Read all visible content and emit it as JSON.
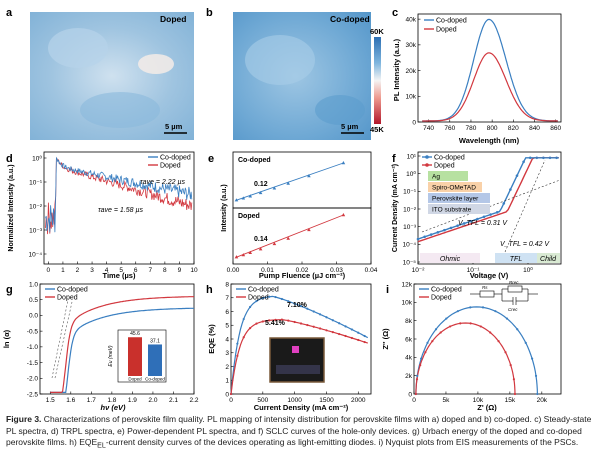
{
  "colors": {
    "codoped": "#3a7fc1",
    "doped": "#d2383f",
    "bar_codoped": "#2f6fb8",
    "bar_doped": "#c9302c"
  },
  "panel_a": {
    "letter": "a",
    "label": "Doped",
    "scale": "5 µm"
  },
  "panel_b": {
    "letter": "b",
    "label": "Co-doped",
    "scale": "5 µm",
    "colorbar_max": "60K",
    "colorbar_min": "45K"
  },
  "panel_c": {
    "letter": "c",
    "chart_data": {
      "type": "line",
      "xlabel": "Wavelength (nm)",
      "ylabel": "PL Intensity (a.u.)",
      "xlim": [
        730,
        865
      ],
      "ylim": [
        0,
        42000
      ],
      "xticks": [
        "740",
        "760",
        "780",
        "800",
        "820",
        "840",
        "860"
      ],
      "yticks": [
        "0",
        "10k",
        "20k",
        "30k",
        "40k"
      ],
      "series": [
        {
          "name": "Co-doped",
          "peak_x": 797,
          "peak_y": 39500,
          "width": 24
        },
        {
          "name": "Doped",
          "peak_x": 797,
          "peak_y": 26500,
          "width": 24
        }
      ]
    }
  },
  "panel_d": {
    "letter": "d",
    "chart_data": {
      "type": "line",
      "xlabel": "Time (µs)",
      "ylabel": "Normalized Intensity (a.u.)",
      "xlim": [
        -0.3,
        10
      ],
      "ylim_log": [
        -4,
        0.3
      ],
      "xticks": [
        "0",
        "1",
        "2",
        "3",
        "4",
        "5",
        "6",
        "7",
        "8",
        "9",
        "10"
      ],
      "yticks": [
        "10⁻⁴",
        "10⁻³",
        "10⁻²",
        "10⁻¹",
        "10⁰"
      ],
      "series": [
        {
          "name": "Co-doped",
          "tau": 2.22
        },
        {
          "name": "Doped",
          "tau": 1.58
        }
      ],
      "annot_codoped": "τave = 2.22 µs",
      "annot_doped": "τave = 1.58 µs"
    }
  },
  "panel_e": {
    "letter": "e",
    "chart_data": {
      "type": "scatter",
      "xlabel": "Pump Fluence (µJ cm⁻²)",
      "ylabel": "Intensity (a.u.)",
      "xlim": [
        0,
        0.04
      ],
      "xticks": [
        "0.00",
        "0.01",
        "0.02",
        "0.03",
        "0.04"
      ],
      "series": [
        {
          "name": "Co-doped",
          "slope": 0.12,
          "x": [
            0.001,
            0.003,
            0.005,
            0.008,
            0.012,
            0.016,
            0.022,
            0.032
          ]
        },
        {
          "name": "Doped",
          "slope": 0.14,
          "x": [
            0.001,
            0.003,
            0.005,
            0.008,
            0.012,
            0.016,
            0.022,
            0.032
          ]
        }
      ],
      "label_codoped": "Co-doped",
      "label_doped": "Doped",
      "slope_codoped": "0.12",
      "slope_doped": "0.14"
    }
  },
  "panel_f": {
    "letter": "f",
    "chart_data": {
      "type": "line",
      "xlabel": "Voltage (V)",
      "ylabel": "Current Density (mA cm⁻²)",
      "xlim_log": [
        -2,
        0.6
      ],
      "ylim_log": [
        -5,
        1
      ],
      "xticks": [
        "10⁻²",
        "10⁻¹",
        "10⁰"
      ],
      "yticks": [
        "10⁻⁵",
        "10⁻⁴",
        "10⁻³",
        "10⁻²",
        "10⁻¹",
        "10⁰",
        "10¹"
      ],
      "series": [
        {
          "name": "Co-doped",
          "vtfl": 0.31
        },
        {
          "name": "Doped",
          "vtfl": 0.42
        }
      ],
      "layers": [
        "Ag",
        "Spiro-OMeTAD",
        "Perovskite layer",
        "ITO substrate"
      ],
      "regions": [
        "Ohmic",
        "TFL",
        "Child"
      ],
      "vtfl_codoped": "V_TFL = 0.31 V",
      "vtfl_doped": "V_TFL = 0.42 V"
    }
  },
  "panel_g": {
    "letter": "g",
    "chart_data": {
      "type": "line",
      "xlabel": "hν (eV)",
      "ylabel": "ln (α)",
      "xlim": [
        1.45,
        2.2
      ],
      "ylim": [
        -2.5,
        1.0
      ],
      "xticks": [
        "1.5",
        "1.6",
        "1.7",
        "1.8",
        "1.9",
        "2.0",
        "2.1",
        "2.2"
      ],
      "yticks": [
        "-2.5",
        "-2.0",
        "-1.5",
        "-1.0",
        "-0.5",
        "0.0",
        "0.5",
        "1.0"
      ],
      "series": [
        {
          "name": "Co-doped"
        },
        {
          "name": "Doped"
        }
      ],
      "inset": {
        "ylabel": "Eu (meV)",
        "categories": [
          "Doped",
          "Co-doped"
        ],
        "values": [
          45.6,
          37.1
        ],
        "labels": [
          "45.6",
          "37.1"
        ]
      }
    }
  },
  "panel_h": {
    "letter": "h",
    "chart_data": {
      "type": "line",
      "xlabel": "Current Density (mA cm⁻²)",
      "ylabel": "EQE (%)",
      "xlim": [
        0,
        2200
      ],
      "ylim": [
        0,
        8
      ],
      "xticks": [
        "0",
        "500",
        "1000",
        "1500",
        "2000"
      ],
      "yticks": [
        "0",
        "1",
        "2",
        "3",
        "4",
        "5",
        "6",
        "7",
        "8"
      ],
      "series": [
        {
          "name": "Co-doped",
          "peak": 7.1
        },
        {
          "name": "Doped",
          "peak": 5.41
        }
      ],
      "annot_codoped": "7.10%",
      "annot_doped": "5.41%"
    }
  },
  "panel_i": {
    "letter": "i",
    "chart_data": {
      "type": "line",
      "xlabel": "Z' (Ω)",
      "ylabel": "Z'' (Ω)",
      "xlim": [
        0,
        23000
      ],
      "ylim": [
        0,
        12000
      ],
      "xticks": [
        "0",
        "5k",
        "10k",
        "15k",
        "20k"
      ],
      "yticks": [
        "0",
        "2k",
        "4k",
        "6k",
        "8k",
        "10k",
        "12k"
      ],
      "series": [
        {
          "name": "Co-doped",
          "rrec": 19000
        },
        {
          "name": "Doped",
          "rrec": 15500
        }
      ],
      "circuit_labels": [
        "Rs",
        "Rrec",
        "Crec"
      ]
    }
  },
  "legend": {
    "codoped": "Co-doped",
    "doped": "Doped"
  },
  "caption": {
    "label": "Figure 3.",
    "text": " Characterizations of perovskite film quality. PL mapping of intensity distribution for perovskite films with a) doped and b) co-doped. c) Steady-state PL spectra, d) TRPL spectra, e) Power-dependent PL spectra, and f) SCLC curves of the hole-only devices. g) Urbach energy of the doped and co-doped perovskite films. h) EQE",
    "sub": "EL",
    "text2": "-current density curves of the devices operating as light-emitting diodes. i) Nyquist plots from EIS measurements of the PSCs."
  }
}
